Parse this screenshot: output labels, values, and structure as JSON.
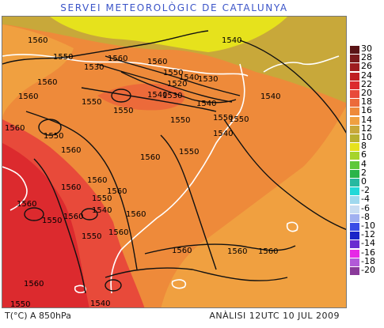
{
  "header": {
    "title": "SERVEI METEOROLÒGIC DE CATALUNYA"
  },
  "footer": {
    "variable": "T(°C) A 850hPa",
    "analysis": "ANÀLISI 12UTC 10 JUL 2009"
  },
  "colors": {
    "title": "#3b54c8",
    "coast": "#ffffff",
    "contour": "#111111"
  },
  "legend": {
    "items": [
      {
        "label": "30",
        "color": "#5a1416"
      },
      {
        "label": "28",
        "color": "#7a1a1c"
      },
      {
        "label": "26",
        "color": "#9e1d20"
      },
      {
        "label": "24",
        "color": "#c01f23"
      },
      {
        "label": "22",
        "color": "#dc2a2e"
      },
      {
        "label": "20",
        "color": "#e84a3a"
      },
      {
        "label": "18",
        "color": "#ec6a3a"
      },
      {
        "label": "16",
        "color": "#ee8a3a"
      },
      {
        "label": "14",
        "color": "#f0a040"
      },
      {
        "label": "12",
        "color": "#c8a83a"
      },
      {
        "label": "10",
        "color": "#b8b030"
      },
      {
        "label": "8",
        "color": "#e6e21c"
      },
      {
        "label": "6",
        "color": "#a6d42a"
      },
      {
        "label": "4",
        "color": "#5ec83a"
      },
      {
        "label": "2",
        "color": "#2ab44a"
      },
      {
        "label": "0",
        "color": "#26b8a0"
      },
      {
        "label": "-2",
        "color": "#22d8d8"
      },
      {
        "label": "-4",
        "color": "#9fd8ee"
      },
      {
        "label": "-6",
        "color": "#c8dcf2"
      },
      {
        "label": "-8",
        "color": "#a0b0f0"
      },
      {
        "label": "-10",
        "color": "#3a4ce6"
      },
      {
        "label": "-12",
        "color": "#1a24c8"
      },
      {
        "label": "-14",
        "color": "#6a2ad0"
      },
      {
        "label": "-16",
        "color": "#e628e6"
      },
      {
        "label": "-18",
        "color": "#b25ad8"
      },
      {
        "label": "-20",
        "color": "#8a3a9a"
      }
    ]
  },
  "contour_labels": [
    {
      "text": "1560"
    },
    {
      "text": "1540"
    },
    {
      "text": "1550"
    },
    {
      "text": "1560"
    },
    {
      "text": "1530"
    },
    {
      "text": "1560"
    },
    {
      "text": "1550"
    },
    {
      "text": "1540"
    },
    {
      "text": "1530"
    },
    {
      "text": "1520"
    },
    {
      "text": "1560"
    },
    {
      "text": "1560"
    },
    {
      "text": "1550"
    },
    {
      "text": "1540"
    },
    {
      "text": "1530"
    },
    {
      "text": "1540"
    },
    {
      "text": "1540"
    },
    {
      "text": "1550"
    },
    {
      "text": "1550"
    },
    {
      "text": "1560"
    },
    {
      "text": "1540"
    },
    {
      "text": "1550"
    },
    {
      "text": "1550"
    },
    {
      "text": "1550"
    },
    {
      "text": "1560"
    },
    {
      "text": "1560"
    },
    {
      "text": "1550"
    },
    {
      "text": "1560"
    },
    {
      "text": "1560"
    },
    {
      "text": "1540"
    },
    {
      "text": "1560"
    },
    {
      "text": "1550"
    },
    {
      "text": "1550"
    },
    {
      "text": "1560"
    },
    {
      "text": "1560"
    },
    {
      "text": "1560"
    },
    {
      "text": "1560"
    },
    {
      "text": "1560"
    },
    {
      "text": "1560"
    },
    {
      "text": "1550"
    },
    {
      "text": "1540"
    },
    {
      "text": "1560"
    },
    {
      "text": "1560"
    },
    {
      "text": "1550"
    }
  ]
}
